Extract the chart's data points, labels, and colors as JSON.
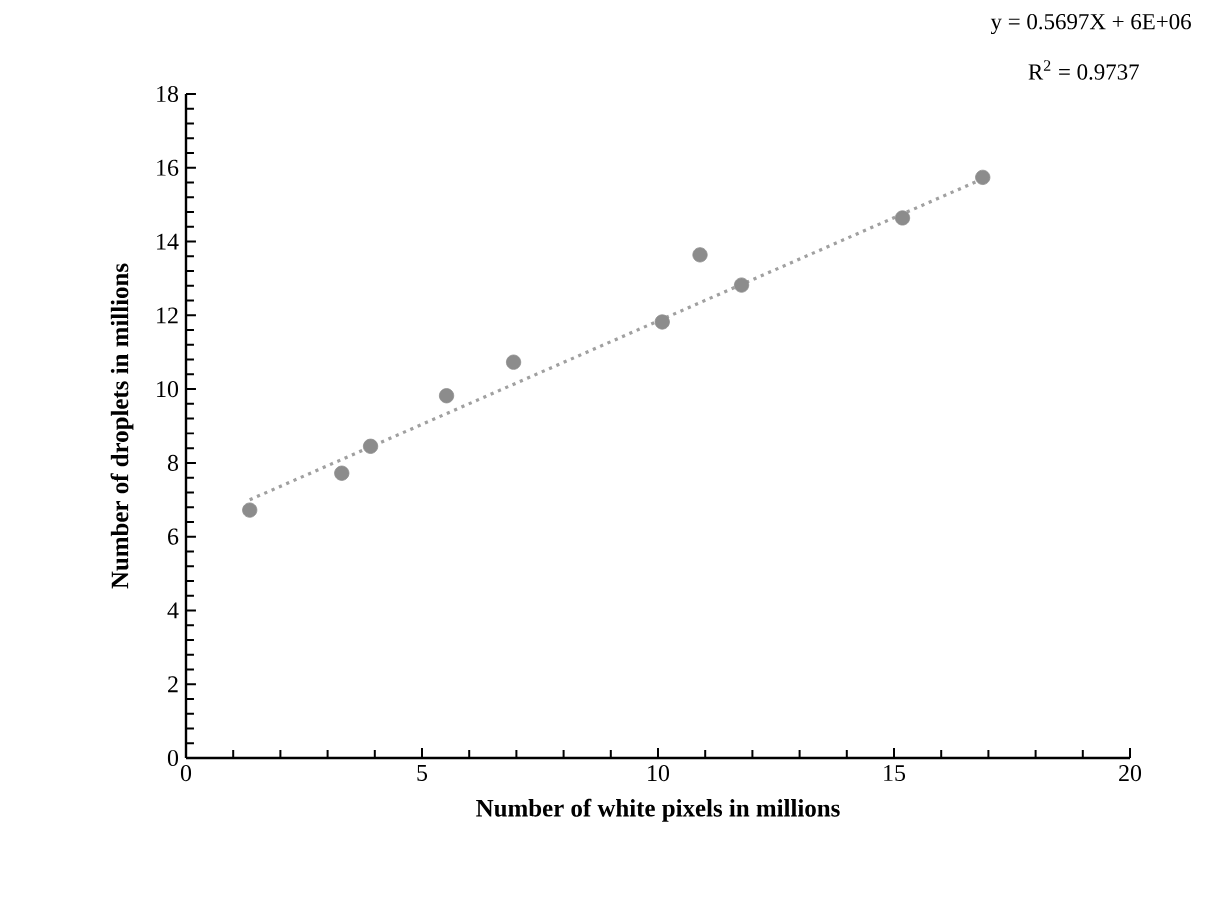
{
  "chart_data": {
    "type": "scatter",
    "xlabel": "Number  of white pixels in millions",
    "ylabel": "Number  of droplets  in millions",
    "annotations": [
      "y = 0.5697X  + 6E+06",
      "R$^{2}$ = 0.9737"
    ],
    "series": [
      {
        "color": "#8c8c8c",
        "marker": "circle",
        "x": [
          1.35,
          3.3,
          3.91,
          5.52,
          6.94,
          10.09,
          10.89,
          11.77,
          15.18,
          16.88
        ],
        "values": [
          6.72,
          7.72,
          8.45,
          9.82,
          10.73,
          11.82,
          13.64,
          12.82,
          14.64,
          15.74
        ]
      },
      {
        "type": "line",
        "color": "#a0a0a0",
        "line_style": "dotted",
        "marker": "none",
        "x": [
          1.35,
          16.88
        ],
        "values": [
          7.0,
          15.7
        ]
      }
    ],
    "xlim": [
      0,
      20
    ],
    "ylim": [
      0,
      18
    ],
    "xticks": [
      0,
      5,
      10,
      15,
      20
    ],
    "yticks": [
      0,
      2,
      4,
      6,
      8,
      10,
      12,
      14,
      16,
      18
    ],
    "grid": false
  }
}
